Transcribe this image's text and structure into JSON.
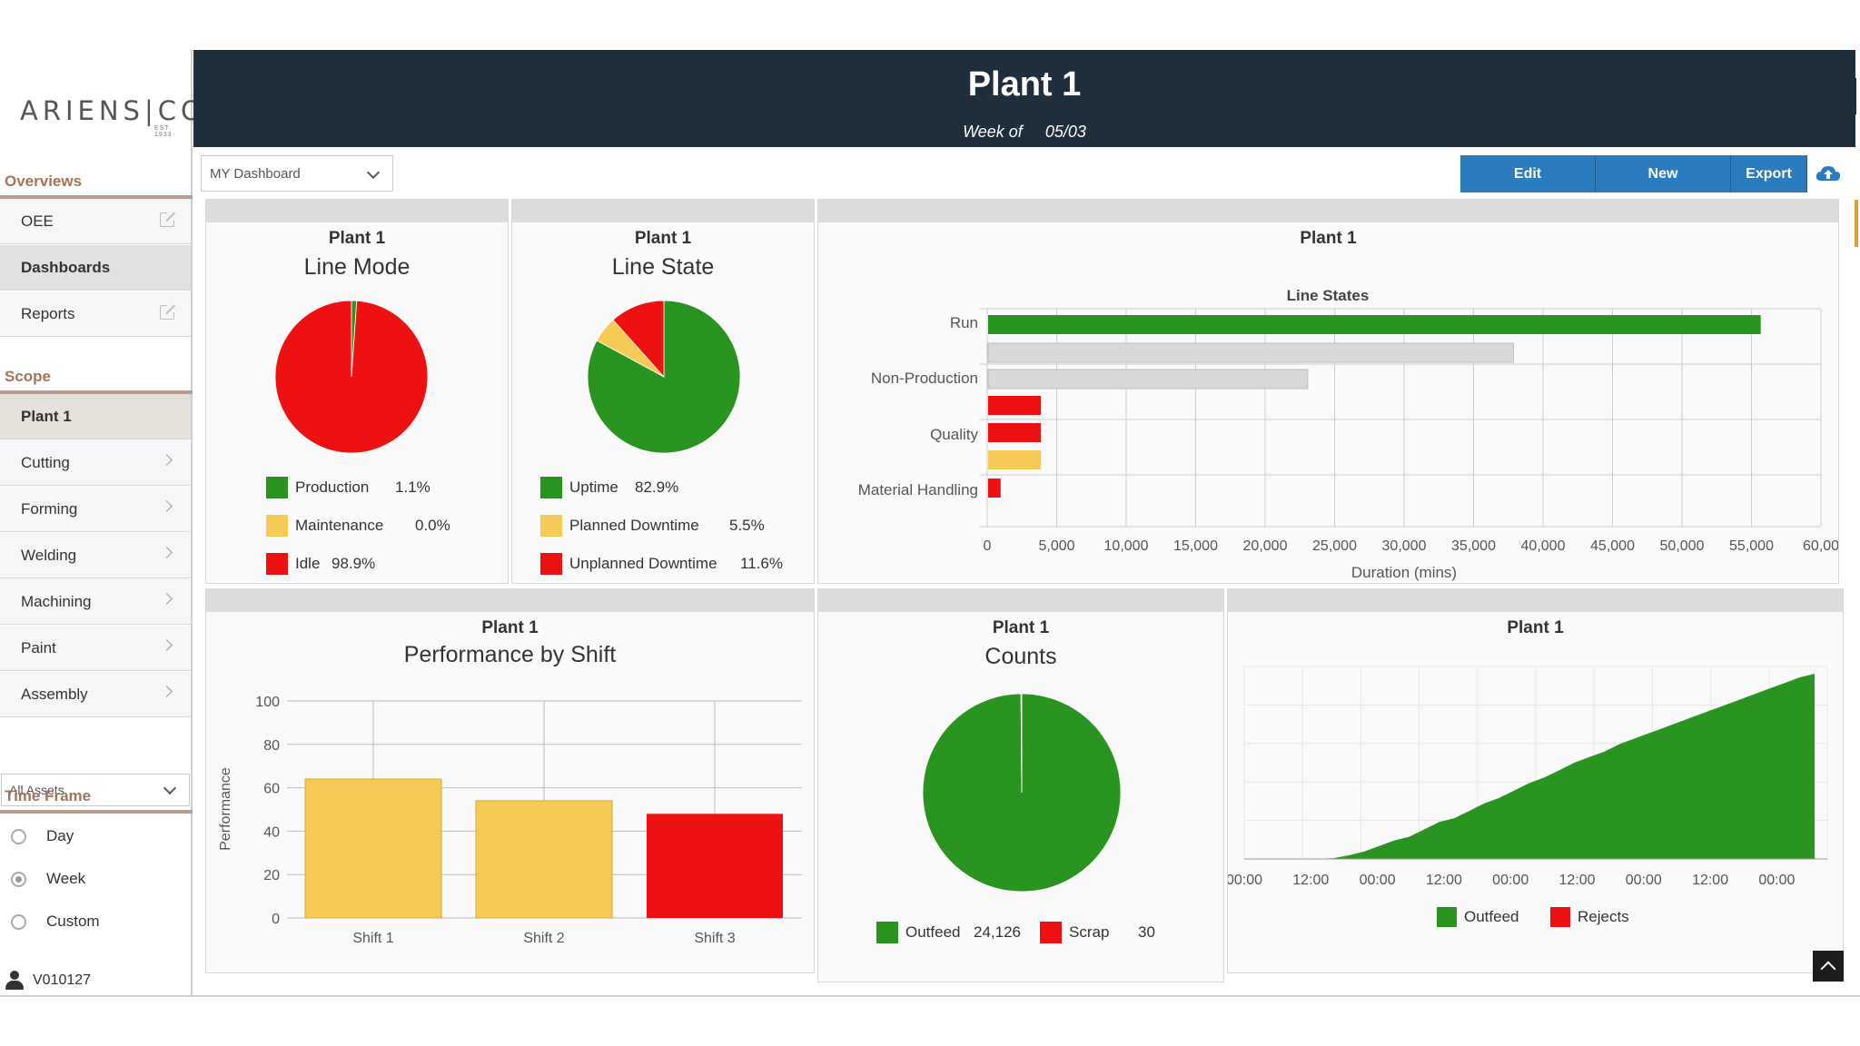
{
  "sidebar": {
    "logo_text": "ARIENS|CO",
    "logo_sub": "EST. 1933",
    "overviews_title": "Overviews",
    "overview_items": [
      {
        "label": "OEE",
        "icon": "external-link-icon"
      },
      {
        "label": "Dashboards",
        "icon": ""
      },
      {
        "label": "Reports",
        "icon": "external-link-icon"
      }
    ],
    "scope_title": "Scope",
    "scope_items": [
      {
        "label": "Plant 1"
      },
      {
        "label": "Cutting"
      },
      {
        "label": "Forming"
      },
      {
        "label": "Welding"
      },
      {
        "label": "Machining"
      },
      {
        "label": "Paint"
      },
      {
        "label": "Assembly"
      }
    ],
    "asset_select": "All Assets",
    "timeframe_title": "Time Frame",
    "timeframe_options": [
      {
        "label": "Day",
        "selected": false
      },
      {
        "label": "Week",
        "selected": true
      },
      {
        "label": "Custom",
        "selected": false
      }
    ],
    "user": "V010127"
  },
  "header": {
    "title": "Plant 1",
    "week_label": "Week of",
    "week_value": "05/03"
  },
  "toolbar": {
    "dashboard_select": "MY Dashboard",
    "edit_label": "Edit",
    "new_label": "New",
    "export_label": "Export"
  },
  "colors": {
    "green": "#2a9421",
    "yellow": "#f6cb55",
    "red": "#ee1111",
    "grey_bar": "#d8d8d8",
    "header_bg": "#1f2e3d",
    "button_blue": "#2b7bbf"
  },
  "chart_data": [
    {
      "type": "pie",
      "plant": "Plant 1",
      "title": "Line Mode",
      "slices": [
        {
          "label": "Production",
          "value": 1.1,
          "display": "1.1%",
          "color": "#2a9421"
        },
        {
          "label": "Maintenance",
          "value": 0.0,
          "display": "0.0%",
          "color": "#f6cb55"
        },
        {
          "label": "Idle",
          "value": 98.9,
          "display": "98.9%",
          "color": "#ee1111"
        }
      ]
    },
    {
      "type": "pie",
      "plant": "Plant 1",
      "title": "Line State",
      "slices": [
        {
          "label": "Uptime",
          "value": 82.9,
          "display": "82.9%",
          "color": "#2a9421"
        },
        {
          "label": "Planned Downtime",
          "value": 5.5,
          "display": "5.5%",
          "color": "#f6cb55"
        },
        {
          "label": "Unplanned Downtime",
          "value": 11.6,
          "display": "11.6%",
          "color": "#ee1111"
        }
      ]
    },
    {
      "type": "bar",
      "orientation": "horizontal",
      "plant": "Plant 1",
      "title": "Line States",
      "xlabel": "Duration (mins)",
      "xlim": [
        0,
        60000
      ],
      "xticks": [
        "0",
        "5,000",
        "10,000",
        "15,000",
        "20,000",
        "25,000",
        "30,000",
        "35,000",
        "40,000",
        "45,000",
        "50,000",
        "55,000",
        "60,00"
      ],
      "categories": [
        "Run",
        "Non-Production",
        "Quality",
        "Material Handling"
      ],
      "bars": [
        {
          "value": 55600,
          "color": "#2a9421"
        },
        {
          "value": 37800,
          "color": "#d8d8d8"
        },
        {
          "value": 23000,
          "color": "#d8d8d8"
        },
        {
          "value": 3800,
          "color": "#ee1111"
        },
        {
          "value": 3800,
          "color": "#ee1111"
        },
        {
          "value": 3800,
          "color": "#f6cb55"
        },
        {
          "value": 900,
          "color": "#ee1111"
        }
      ],
      "grid": true
    },
    {
      "type": "bar",
      "plant": "Plant 1",
      "title": "Performance by Shift",
      "ylabel": "Performance",
      "ylim": [
        0,
        100
      ],
      "yticks": [
        "0",
        "20",
        "40",
        "60",
        "80",
        "100"
      ],
      "categories": [
        "Shift 1",
        "Shift 2",
        "Shift 3"
      ],
      "values": [
        64,
        54,
        48
      ],
      "bar_colors": [
        "#f6cb55",
        "#f6cb55",
        "#ee1111"
      ],
      "grid": true
    },
    {
      "type": "pie",
      "plant": "Plant 1",
      "title": "Counts",
      "slices": [
        {
          "label": "Outfeed",
          "value": 24126,
          "display": "24,126",
          "color": "#2a9421"
        },
        {
          "label": "Scrap",
          "value": 30,
          "display": "30",
          "color": "#ee1111"
        }
      ]
    },
    {
      "type": "area",
      "plant": "Plant 1",
      "xticks": [
        "00:00",
        "12:00",
        "00:00",
        "12:00",
        "00:00",
        "12:00",
        "00:00",
        "12:00",
        "00:00"
      ],
      "series": [
        {
          "name": "Outfeed",
          "color": "#2a9421",
          "values": [
            0,
            0,
            0,
            0,
            0,
            0,
            0.5,
            2,
            4,
            7,
            10,
            12,
            16,
            20,
            22,
            26,
            30,
            33,
            37,
            41,
            44,
            48,
            52,
            55,
            58,
            62,
            65,
            68,
            71,
            74,
            77,
            80,
            83,
            86,
            89,
            92,
            95,
            98,
            100
          ]
        },
        {
          "name": "Rejects",
          "color": "#ee1111",
          "values": []
        }
      ],
      "grid": true
    }
  ]
}
